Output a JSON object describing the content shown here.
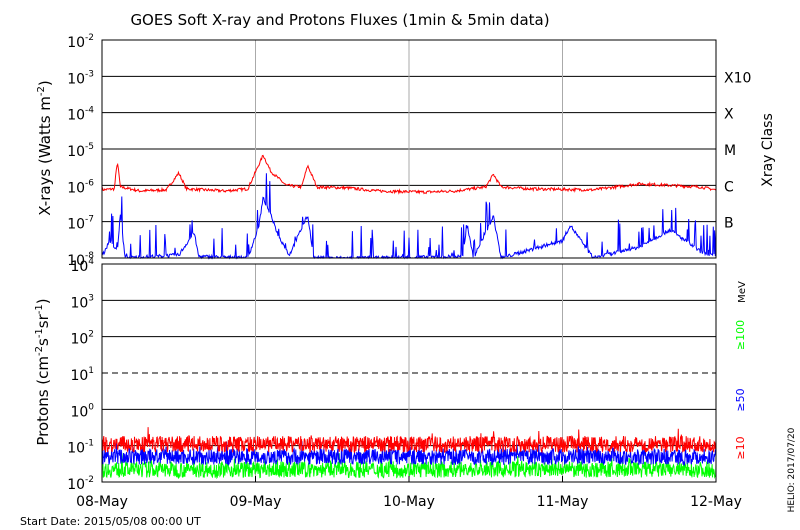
{
  "chart_data": [
    {
      "type": "line",
      "title": "GOES Soft X-ray and Protons Fluxes   (1min & 5min data)",
      "ylabel": "X-rays (Watts m",
      "ylabel_sup": "-2",
      "ylabel_close": ")",
      "y_scale": "log",
      "ylim": [
        1e-08,
        0.01
      ],
      "y_ticks": [
        {
          "base": "10",
          "exp": "-8"
        },
        {
          "base": "10",
          "exp": "-7"
        },
        {
          "base": "10",
          "exp": "-6"
        },
        {
          "base": "10",
          "exp": "-5"
        },
        {
          "base": "10",
          "exp": "-4"
        },
        {
          "base": "10",
          "exp": "-3"
        },
        {
          "base": "10",
          "exp": "-2"
        }
      ],
      "xray_class_title": "Xray Class",
      "xray_classes": [
        {
          "label": "B",
          "flux": 1e-07
        },
        {
          "label": "C",
          "flux": 1e-06
        },
        {
          "label": "M",
          "flux": 1e-05
        },
        {
          "label": "X",
          "flux": 0.0001
        },
        {
          "label": "X10",
          "flux": 0.001
        }
      ],
      "grid": true,
      "series": [
        {
          "color": "#ff0000",
          "points": [
            [
              0,
              7.5e-07
            ],
            [
              0.08,
              8e-07
            ],
            [
              0.1,
              4.5e-06
            ],
            [
              0.12,
              9e-07
            ],
            [
              0.25,
              7e-07
            ],
            [
              0.42,
              7.5e-07
            ],
            [
              0.5,
              2.2e-06
            ],
            [
              0.55,
              8e-07
            ],
            [
              0.8,
              7e-07
            ],
            [
              0.95,
              8e-07
            ],
            [
              1.05,
              6.8e-06
            ],
            [
              1.1,
              2.4e-06
            ],
            [
              1.2,
              1e-06
            ],
            [
              1.3,
              9e-07
            ],
            [
              1.34,
              3.5e-06
            ],
            [
              1.4,
              9e-07
            ],
            [
              1.6,
              8.5e-07
            ],
            [
              1.8,
              7e-07
            ],
            [
              2.1,
              6.5e-07
            ],
            [
              2.3,
              7e-07
            ],
            [
              2.5,
              9e-07
            ],
            [
              2.55,
              2e-06
            ],
            [
              2.6,
              9e-07
            ],
            [
              2.8,
              8e-07
            ],
            [
              3.2,
              7.5e-07
            ],
            [
              3.5,
              1.1e-06
            ],
            [
              3.7,
              1e-06
            ],
            [
              3.9,
              9e-07
            ],
            [
              4,
              7.5e-07
            ]
          ]
        },
        {
          "color": "#0000ff",
          "points": [
            [
              0,
              1.1e-08
            ],
            [
              0.05,
              3e-08
            ],
            [
              0.1,
              1.5e-08
            ],
            [
              0.12,
              1.7e-07
            ],
            [
              0.15,
              1e-08
            ],
            [
              0.5,
              1.2e-08
            ],
            [
              0.6,
              5e-08
            ],
            [
              0.63,
              1.1e-08
            ],
            [
              0.95,
              1e-08
            ],
            [
              1.02,
              7e-08
            ],
            [
              1.05,
              4.5e-07
            ],
            [
              1.1,
              1.5e-07
            ],
            [
              1.15,
              4e-08
            ],
            [
              1.22,
              1.2e-08
            ],
            [
              1.34,
              1.5e-07
            ],
            [
              1.38,
              1e-08
            ],
            [
              1.8,
              1e-08
            ],
            [
              2.35,
              1.1e-08
            ],
            [
              2.38,
              8e-08
            ],
            [
              2.42,
              1e-08
            ],
            [
              2.55,
              1.4e-07
            ],
            [
              2.6,
              1e-08
            ],
            [
              3,
              3e-08
            ],
            [
              3.05,
              8e-08
            ],
            [
              3.1,
              4e-08
            ],
            [
              3.2,
              1e-08
            ],
            [
              3.5,
              2e-08
            ],
            [
              3.7,
              6e-08
            ],
            [
              3.9,
              1.5e-08
            ],
            [
              4,
              1.1e-08
            ]
          ]
        }
      ]
    },
    {
      "type": "line",
      "ylabel": "Protons (cm",
      "ylabel_sup1": "-2",
      "ylabel_mid": "s",
      "ylabel_sup2": "-1",
      "ylabel_mid2": "sr",
      "ylabel_sup3": "-1",
      "ylabel_close": ")",
      "y_scale": "log",
      "ylim": [
        0.01,
        10000
      ],
      "y_ticks": [
        {
          "base": "10",
          "exp": "-2"
        },
        {
          "base": "10",
          "exp": "-1"
        },
        {
          "base": "10",
          "exp": "0"
        },
        {
          "base": "10",
          "exp": "1"
        },
        {
          "base": "10",
          "exp": "2"
        },
        {
          "base": "10",
          "exp": "3"
        },
        {
          "base": "10",
          "exp": "4"
        }
      ],
      "threshold": 10,
      "unit_label": "MeV",
      "legend_placement": "right",
      "series": [
        {
          "name": "≥10",
          "color": "#ff0000",
          "base_value": 0.11
        },
        {
          "name": "≥50",
          "color": "#0000ff",
          "base_value": 0.05
        },
        {
          "name": "≥100",
          "color": "#00ff00",
          "base_value": 0.022
        }
      ]
    }
  ],
  "x_axis": {
    "range_days": [
      0,
      4
    ],
    "ticks": [
      {
        "label": "08-May",
        "day": 0
      },
      {
        "label": "09-May",
        "day": 1
      },
      {
        "label": "10-May",
        "day": 2
      },
      {
        "label": "11-May",
        "day": 3
      },
      {
        "label": "12-May",
        "day": 4
      }
    ]
  },
  "start_date": "Start Date: 2015/05/08 00:00 UT",
  "credit": "HELIO: 2017/07/20"
}
